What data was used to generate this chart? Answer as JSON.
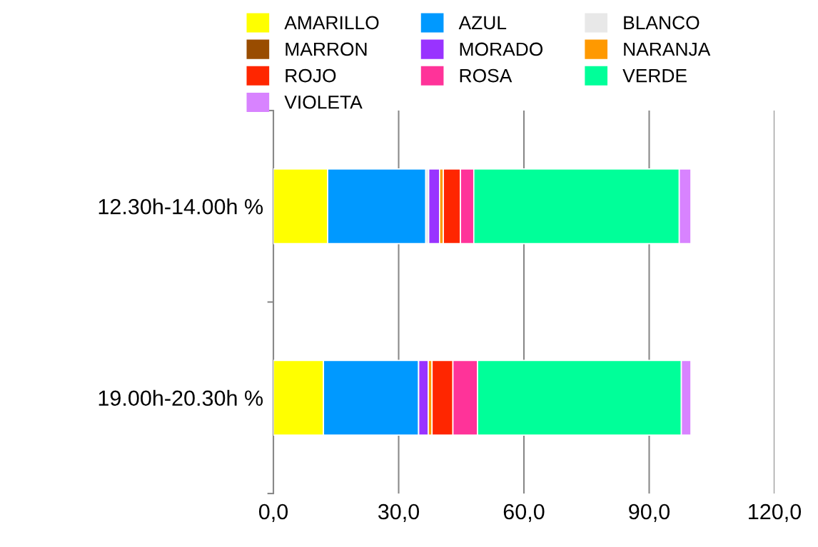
{
  "chart_data": {
    "type": "bar",
    "orientation": "horizontal",
    "stacked": true,
    "categories": [
      "12.30h-14.00h %",
      "19.00h-20.30h %"
    ],
    "series": [
      {
        "name": "AMARILLO",
        "color": "#ffff00",
        "values": [
          13.0,
          12.0
        ]
      },
      {
        "name": "AZUL",
        "color": "#0099ff",
        "values": [
          23.5,
          22.8
        ]
      },
      {
        "name": "BLANCO",
        "color": "#e8e8e8",
        "values": [
          0.7,
          0
        ]
      },
      {
        "name": "MARRON",
        "color": "#994c00",
        "values": [
          0,
          0
        ]
      },
      {
        "name": "MORADO",
        "color": "#9933ff",
        "values": [
          2.6,
          2.3
        ]
      },
      {
        "name": "NARANJA",
        "color": "#ff9900",
        "values": [
          0.9,
          0.9
        ]
      },
      {
        "name": "ROJO",
        "color": "#ff2600",
        "values": [
          4.1,
          5.0
        ]
      },
      {
        "name": "ROSA",
        "color": "#ff3399",
        "values": [
          3.2,
          5.9
        ]
      },
      {
        "name": "VERDE",
        "color": "#00ff99",
        "values": [
          49.2,
          48.8
        ]
      },
      {
        "name": "VIOLETA",
        "color": "#d883ff",
        "values": [
          2.8,
          2.3
        ]
      }
    ],
    "xlim": [
      0,
      120
    ],
    "xticks": [
      {
        "value": 0,
        "label": "0,0"
      },
      {
        "value": 30,
        "label": "30,0"
      },
      {
        "value": 60,
        "label": "60,0"
      },
      {
        "value": 90,
        "label": "90,0"
      },
      {
        "value": 120,
        "label": "120,0"
      }
    ],
    "grid": "x",
    "legend": "top"
  }
}
